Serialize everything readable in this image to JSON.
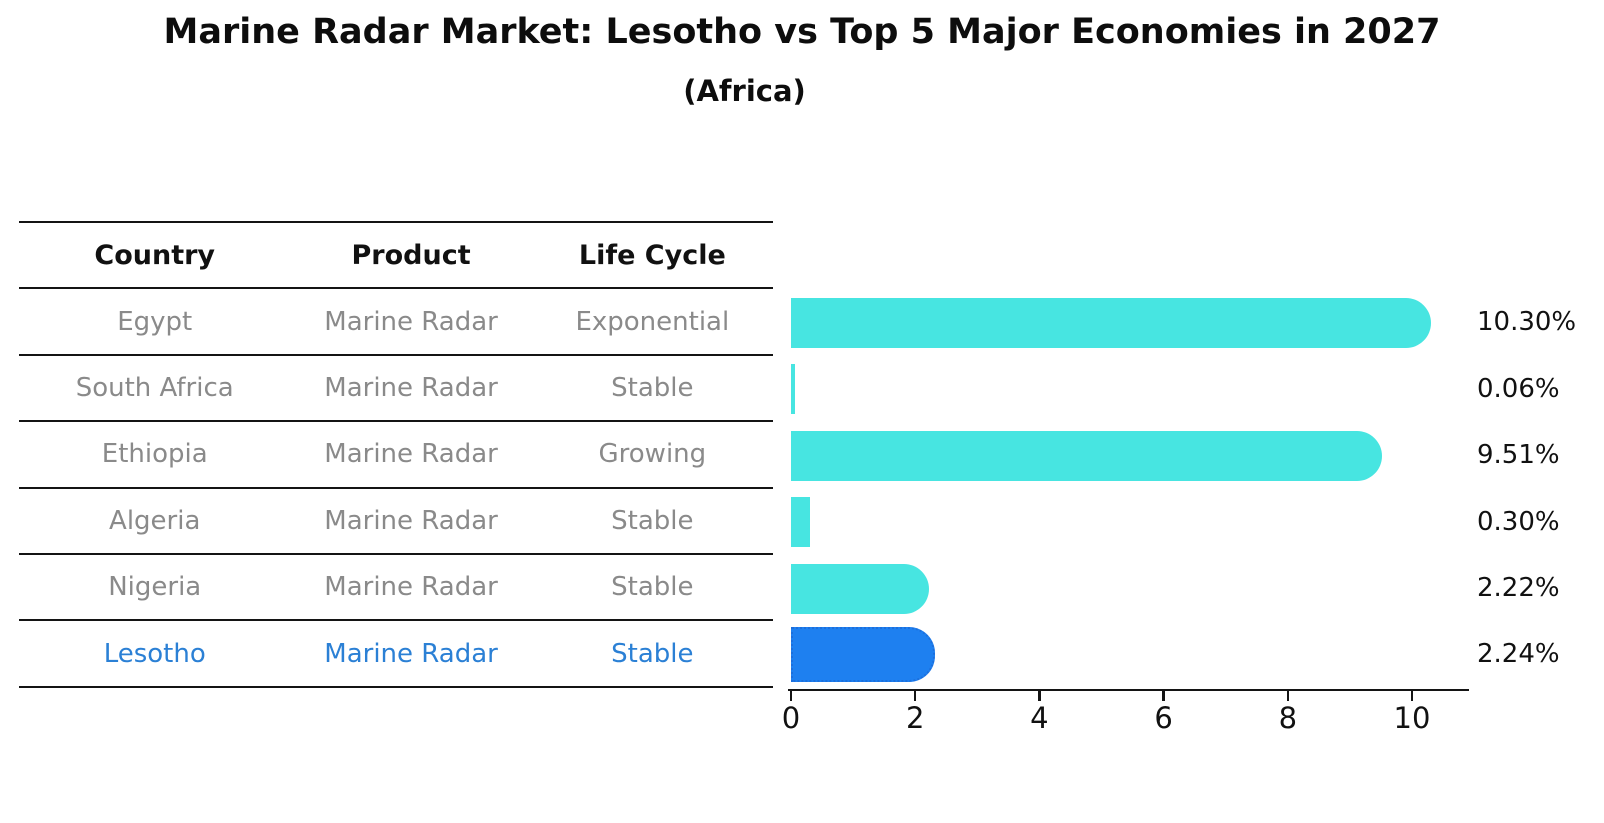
{
  "title": "Marine Radar Market: Lesotho vs Top 5 Major Economies in 2027",
  "subtitle": "(Africa)",
  "table": {
    "headers": [
      "Country",
      "Product",
      "Life Cycle"
    ]
  },
  "chart_data": {
    "type": "bar",
    "orientation": "horizontal",
    "title": "Marine Radar Market: Lesotho vs Top 5 Major Economies in 2027",
    "subtitle": "(Africa)",
    "x_ticks": [
      0,
      2,
      4,
      6,
      8,
      10
    ],
    "xlim": [
      0,
      10.9
    ],
    "grid": false,
    "legend": "none",
    "categories": [
      "Egypt",
      "South Africa",
      "Ethiopia",
      "Algeria",
      "Nigeria",
      "Lesotho"
    ],
    "values": [
      10.3,
      0.06,
      9.51,
      0.3,
      2.22,
      2.24
    ],
    "rows": [
      {
        "country": "Egypt",
        "product": "Marine Radar",
        "life_cycle": "Exponential",
        "value": 10.3,
        "label": "10.30%",
        "highlight": false
      },
      {
        "country": "South Africa",
        "product": "Marine Radar",
        "life_cycle": "Stable",
        "value": 0.06,
        "label": "0.06%",
        "highlight": false
      },
      {
        "country": "Ethiopia",
        "product": "Marine Radar",
        "life_cycle": "Growing",
        "value": 9.51,
        "label": "9.51%",
        "highlight": false
      },
      {
        "country": "Algeria",
        "product": "Marine Radar",
        "life_cycle": "Stable",
        "value": 0.3,
        "label": "0.30%",
        "highlight": false
      },
      {
        "country": "Nigeria",
        "product": "Marine Radar",
        "life_cycle": "Stable",
        "value": 2.22,
        "label": "2.22%",
        "highlight": false
      },
      {
        "country": "Lesotho",
        "product": "Marine Radar",
        "life_cycle": "Stable",
        "value": 2.24,
        "label": "2.24%",
        "highlight": true
      }
    ],
    "colors": {
      "bar_default": "#47e5e1",
      "bar_highlight": "#1e80f0",
      "bar_highlight_border": "#1c6fdd",
      "row_text": "#8a8a8a",
      "highlight_text": "#2b80d5",
      "axis": "#141414"
    }
  }
}
